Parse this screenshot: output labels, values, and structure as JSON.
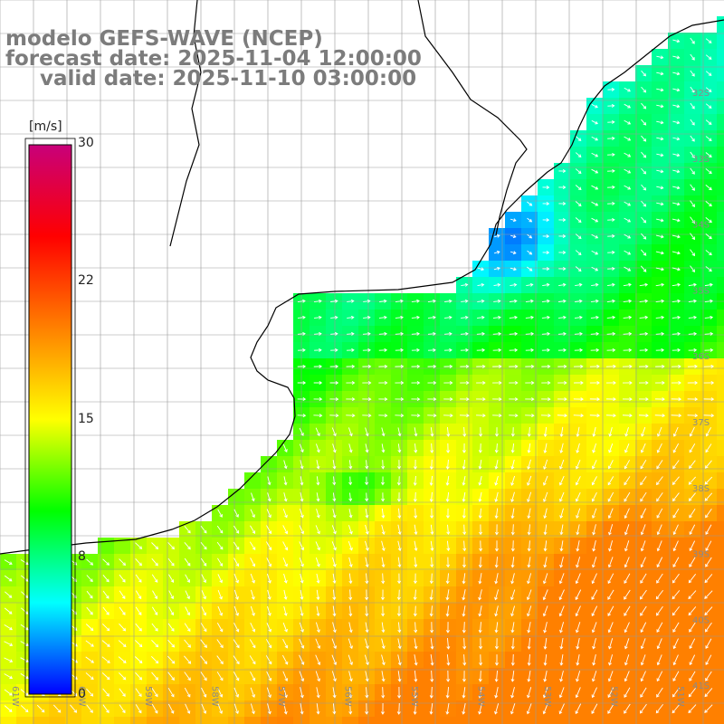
{
  "header": {
    "title_line_1": "modelo GEFS-WAVE (NCEP)",
    "title_line_2": "forecast date: 2025-11-04 12:00:00",
    "title_line_3": "valid date: 2025-11-10 03:00:00"
  },
  "colorbar": {
    "unit": "[m/s]",
    "ticks": [
      "30",
      "22",
      "15",
      "8",
      "0"
    ],
    "tick_values": [
      30,
      22,
      15,
      8,
      0
    ],
    "range": [
      0,
      30
    ],
    "colors": [
      "#0000ff",
      "#00ffff",
      "#00ff00",
      "#ffff00",
      "#ff8000",
      "#ff0000",
      "#c8007a"
    ]
  },
  "map": {
    "lat_labels": [
      "32S",
      "33S",
      "34S",
      "35S",
      "36S",
      "37S",
      "38S",
      "39S",
      "40S",
      "41S"
    ],
    "lon_labels": [
      "61W",
      "60W",
      "59W",
      "58W",
      "57W",
      "56W",
      "55W",
      "54W",
      "53W",
      "52W",
      "51W"
    ],
    "background_color": "#ffffff",
    "grid_color": "#999999",
    "coast_color": "#000000",
    "arrow_color": "#ffffff"
  }
}
